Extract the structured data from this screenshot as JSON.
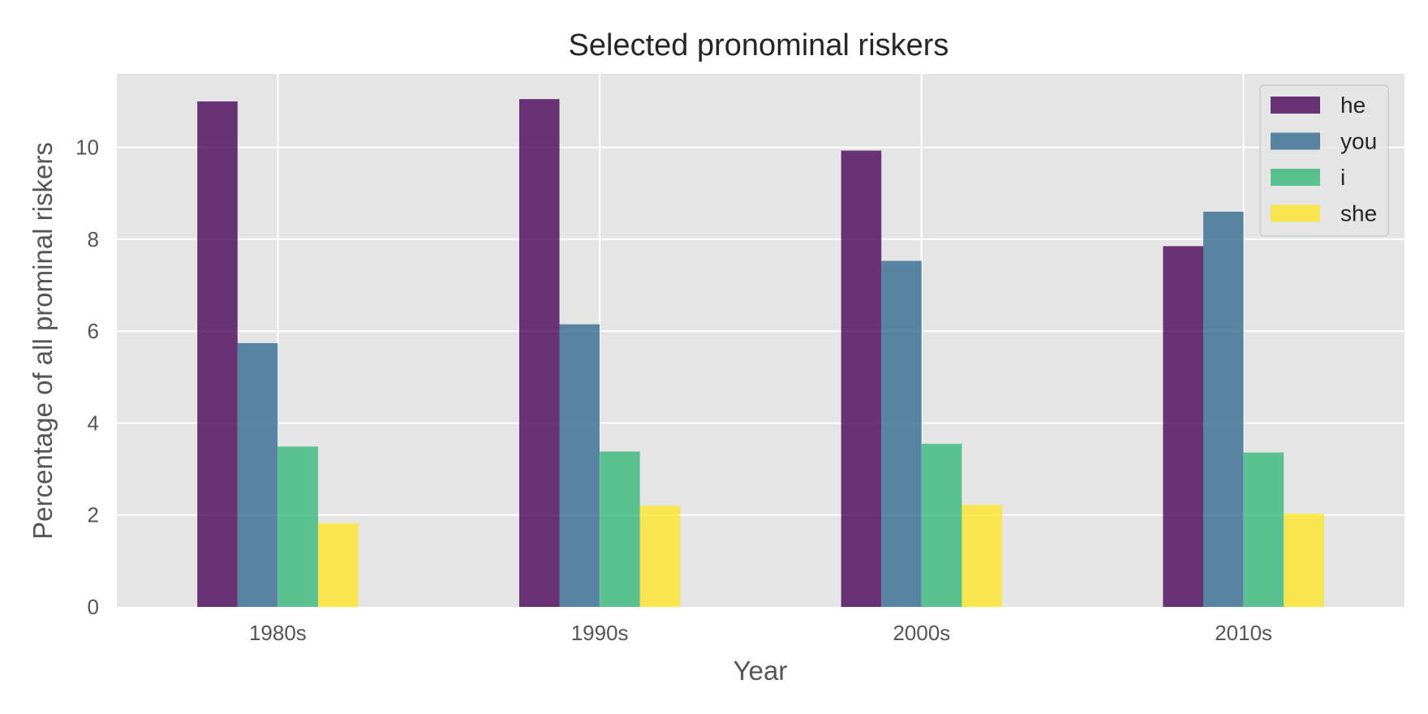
{
  "chart_data": {
    "type": "bar",
    "title": "Selected pronominal riskers",
    "xlabel": "Year",
    "ylabel": "Percentage of all prominal riskers",
    "categories": [
      "1980s",
      "1990s",
      "2000s",
      "2010s"
    ],
    "series": [
      {
        "name": "he",
        "values": [
          11.0,
          11.05,
          9.93,
          7.85
        ],
        "color": "#440154"
      },
      {
        "name": "you",
        "values": [
          5.74,
          6.15,
          7.53,
          8.6
        ],
        "color": "#31688e"
      },
      {
        "name": "i",
        "values": [
          3.49,
          3.38,
          3.55,
          3.36
        ],
        "color": "#35b779"
      },
      {
        "name": "she",
        "values": [
          1.82,
          2.2,
          2.22,
          2.03
        ],
        "color": "#fde725"
      }
    ],
    "ylim": [
      0,
      11.6
    ],
    "yticks": [
      0,
      2,
      4,
      6,
      8,
      10
    ],
    "grid": true,
    "legend_position": "top-right",
    "plot_background": "#e5e5e5"
  }
}
